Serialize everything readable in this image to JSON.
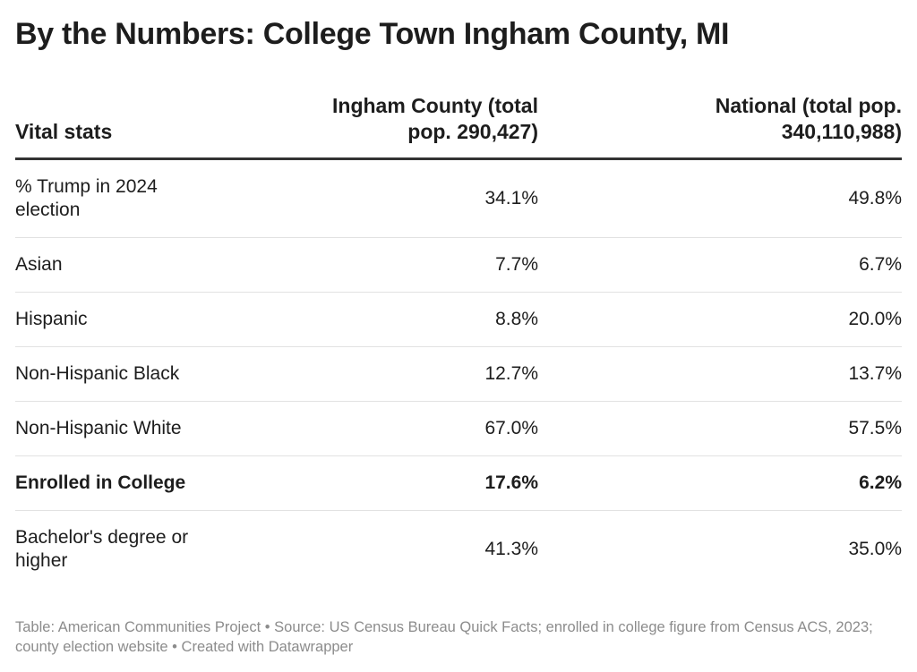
{
  "title": "By the Numbers: College Town Ingham County, MI",
  "chart_data": {
    "type": "table",
    "columns": [
      "Vital stats",
      "Ingham County (total pop. 290,427)",
      "National (total pop. 340,110,988)"
    ],
    "rows": [
      {
        "label": "% Trump in 2024 election",
        "county": "34.1%",
        "national": "49.8%",
        "bold": false
      },
      {
        "label": "Asian",
        "county": "7.7%",
        "national": "6.7%",
        "bold": false
      },
      {
        "label": "Hispanic",
        "county": "8.8%",
        "national": "20.0%",
        "bold": false
      },
      {
        "label": "Non-Hispanic Black",
        "county": "12.7%",
        "national": "13.7%",
        "bold": false
      },
      {
        "label": "Non-Hispanic White",
        "county": "67.0%",
        "national": "57.5%",
        "bold": false
      },
      {
        "label": "Enrolled in College",
        "county": "17.6%",
        "national": "6.2%",
        "bold": true
      },
      {
        "label": "Bachelor's degree or higher",
        "county": "41.3%",
        "national": "35.0%",
        "bold": false
      }
    ]
  },
  "footer": "Table: American Communities Project • Source: US Census Bureau Quick Facts; enrolled in college figure from Census ACS, 2023; county election website • Created with Datawrapper",
  "colors": {
    "text": "#1d1d1d",
    "header_rule": "#333333",
    "row_rule": "#e2e2e2",
    "footer_text": "#8c8c8c"
  }
}
